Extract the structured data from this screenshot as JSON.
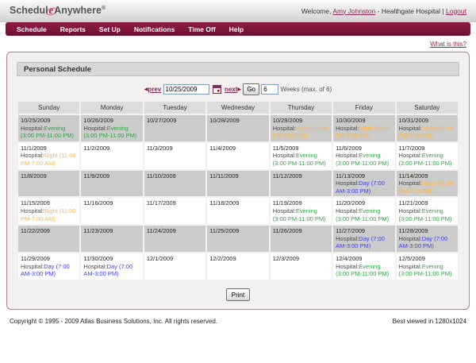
{
  "header": {
    "logo_part1": "Schedul",
    "logo_e": "e",
    "logo_part2": "Anywhere",
    "logo_reg": "®",
    "welcome_prefix": "Welcome,",
    "user_name": "Amy Johnston",
    "org_text": "- Healthgate Hospital",
    "divider": "|",
    "logout_label": "Logout"
  },
  "nav": {
    "items": [
      "Schedule",
      "Reports",
      "Set Up",
      "Notifications",
      "Time Off",
      "Help"
    ]
  },
  "help_link_label": "What is this?",
  "panel": {
    "title": "Personal Schedule",
    "controls": {
      "prev_arrow": "◀",
      "prev_label": "prev",
      "date_value": "10/25/2009",
      "next_label": "next",
      "next_arrow": "▶",
      "go_label": "Go",
      "weeks_value": "6",
      "weeks_caption": "Weeks (max. of 6)"
    },
    "print_label": "Print"
  },
  "calendar": {
    "day_headers": [
      "Sunday",
      "Monday",
      "Tuesday",
      "Wednesday",
      "Thursday",
      "Friday",
      "Saturday"
    ],
    "shift_prefix": "Hospital:",
    "shifts": {
      "evening": {
        "label": "Evening (3:00 PM-11:00 PM)",
        "color": "#2FA342"
      },
      "night": {
        "label": "Night (11:00 PM-7:00 AM)",
        "color": "#FFB54A"
      },
      "day": {
        "label": "Day (7:00 AM-3:00 PM)",
        "color": "#3C3CFF"
      }
    },
    "weeks": [
      {
        "shaded": true,
        "days": [
          {
            "date": "10/25/2009",
            "shift": "evening"
          },
          {
            "date": "10/26/2009",
            "shift": "evening"
          },
          {
            "date": "10/27/2009"
          },
          {
            "date": "10/28/2009"
          },
          {
            "date": "10/29/2009",
            "shift": "night"
          },
          {
            "date": "10/30/2009",
            "shift": "night"
          },
          {
            "date": "10/31/2009",
            "shift": "night"
          }
        ]
      },
      {
        "shaded": false,
        "days": [
          {
            "date": "11/1/2009",
            "shift": "night"
          },
          {
            "date": "11/2/2009"
          },
          {
            "date": "11/3/2009"
          },
          {
            "date": "11/4/2009"
          },
          {
            "date": "11/5/2009",
            "shift": "evening"
          },
          {
            "date": "11/6/2009",
            "shift": "evening"
          },
          {
            "date": "11/7/2009",
            "shift": "evening"
          }
        ]
      },
      {
        "shaded": true,
        "days": [
          {
            "date": "11/8/2009"
          },
          {
            "date": "11/9/2009"
          },
          {
            "date": "11/10/2009"
          },
          {
            "date": "11/11/2009"
          },
          {
            "date": "11/12/2009"
          },
          {
            "date": "11/13/2009",
            "shift": "day"
          },
          {
            "date": "11/14/2009",
            "shift": "night"
          }
        ]
      },
      {
        "shaded": false,
        "days": [
          {
            "date": "11/15/2009",
            "shift": "night"
          },
          {
            "date": "11/16/2009"
          },
          {
            "date": "11/17/2009"
          },
          {
            "date": "11/18/2009"
          },
          {
            "date": "11/19/2009",
            "shift": "evening"
          },
          {
            "date": "11/20/2009",
            "shift": "evening"
          },
          {
            "date": "11/21/2009",
            "shift": "evening"
          }
        ]
      },
      {
        "shaded": true,
        "days": [
          {
            "date": "11/22/2009"
          },
          {
            "date": "11/23/2009"
          },
          {
            "date": "11/24/2009"
          },
          {
            "date": "11/25/2009"
          },
          {
            "date": "11/26/2009"
          },
          {
            "date": "11/27/2009",
            "shift": "day"
          },
          {
            "date": "11/28/2009",
            "shift": "day"
          }
        ]
      },
      {
        "shaded": false,
        "days": [
          {
            "date": "11/29/2009",
            "shift": "day"
          },
          {
            "date": "11/30/2009",
            "shift": "day"
          },
          {
            "date": "12/1/2009"
          },
          {
            "date": "12/2/2009"
          },
          {
            "date": "12/3/2009"
          },
          {
            "date": "12/4/2009",
            "shift": "evening"
          },
          {
            "date": "12/5/2009",
            "shift": "evening"
          }
        ]
      }
    ]
  },
  "colors": {
    "nav_maroon": "#7C1237",
    "link_maroon": "#8C2A57",
    "panel_border": "#B97F99",
    "row_shaded": "#CBCBC9",
    "row_plain": "#FFFFFF"
  },
  "footer": {
    "copyright": "Copyright © 1995 - 2009 Atlas Business Solutions, Inc. All rights reserved.",
    "best_viewed": "Best viewed in 1280x1024"
  }
}
